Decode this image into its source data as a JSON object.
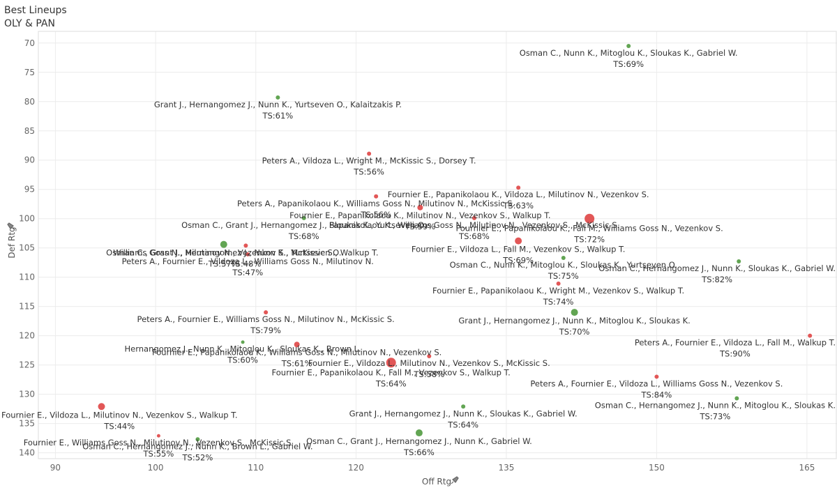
{
  "header": {
    "title": "Best Lineups",
    "subtitle": "OLY & PAN"
  },
  "colors": {
    "green": "#5aa04a",
    "red": "#e04e4e",
    "grid": "#ececec"
  },
  "chart_data": {
    "type": "scatter",
    "title": "Best Lineups",
    "subtitle": "OLY & PAN",
    "xlabel": "Off Rtg",
    "ylabel": "Def Rtg",
    "xlabel_icon": "pin-icon",
    "ylabel_icon": "pin-icon",
    "xlim": [
      88.3,
      168
    ],
    "ylim": [
      141,
      68
    ],
    "y_reversed": true,
    "xticks": [
      90,
      100,
      110,
      120,
      135,
      150,
      165
    ],
    "yticks": [
      70,
      75,
      80,
      85,
      90,
      95,
      100,
      105,
      110,
      115,
      120,
      125,
      130,
      135,
      140
    ],
    "grid": true,
    "points": [
      {
        "lineup": "Osman C., Nunn K., Mitoglou K., Sloukas K., Gabriel W.",
        "ts": "TS:69%",
        "x": 147.2,
        "y": 70.5,
        "color": "green",
        "size": 3
      },
      {
        "lineup": "Grant J., Hernangomez J., Nunn K., Yurtseven O., Kalaitzakis P.",
        "ts": "TS:61%",
        "x": 112.2,
        "y": 79.3,
        "color": "green",
        "size": 3
      },
      {
        "lineup": "Peters A., Vildoza L., Wright M., McKissic S., Dorsey T.",
        "ts": "TS:56%",
        "x": 121.3,
        "y": 88.9,
        "color": "red",
        "size": 3
      },
      {
        "lineup": "Fournier E., Papanikolaou K., Vildoza L., Milutinov N., Vezenkov S.",
        "ts": "TS:63%",
        "x": 136.2,
        "y": 94.7,
        "color": "red",
        "size": 3
      },
      {
        "lineup": "Peters A., Papanikolaou K., Williams Goss N., Milutinov N., McKissic S.",
        "ts": "TS:56%",
        "x": 122,
        "y": 96.2,
        "color": "red",
        "size": 3
      },
      {
        "lineup": "Fournier E., Papanikolaou K., Fall M., Williams Goss N., Vezenkov S.",
        "ts": "TS:72%",
        "x": 143.3,
        "y": 100,
        "color": "red",
        "size": 7
      },
      {
        "lineup": "Fournier E., Papanikolaou K., Milutinov N., Vezenkov S., Walkup T.",
        "ts": "TS:59%",
        "x": 126.4,
        "y": 98.1,
        "color": "red",
        "size": 4
      },
      {
        "lineup": "Osman C., Grant J., Hernangomez J., Sloukas K., Yurtseven O.",
        "ts": "TS:68%",
        "x": 114.8,
        "y": 99.9,
        "color": "green",
        "size": 3
      },
      {
        "lineup": "Papanikolaou K., Williams Goss N., Milutinov N., Vezenkov S., McKissic S.",
        "ts": "TS:68%",
        "x": 131.8,
        "y": 99.9,
        "color": "red",
        "size": 3
      },
      {
        "lineup": "Osman C., Grant J., Hernangomez J., Nunn K., Yurtseven O.",
        "ts": "TS:57%",
        "x": 106.8,
        "y": 104.4,
        "color": "green",
        "size": 5
      },
      {
        "lineup": "Fournier E., Vildoza L., Fall M., Vezenkov S., Walkup T.",
        "ts": "TS:69%",
        "x": 136.2,
        "y": 103.8,
        "color": "red",
        "size": 5
      },
      {
        "lineup": "Peters A., Fournier E., Vildoza L., Williams Goss N., Milutinov N.",
        "ts": "TS:47%",
        "x": 109.2,
        "y": 106.1,
        "color": "red",
        "size": 3
      },
      {
        "lineup": "Osman C., Nunn K., Mitoglou K., Sloukas K., Yurtseven O.",
        "ts": "TS:75%",
        "x": 140.7,
        "y": 106.7,
        "color": "green",
        "size": 3
      },
      {
        "lineup": "Osman C., Hernangomez J., Nunn K., Sloukas K., Gabriel W.",
        "ts": "TS:82%",
        "x": 158.2,
        "y": 107.3,
        "color": "green",
        "size": 3
      },
      {
        "lineup": "Williams Goss N., Milutinov N., Vezenkov S., McKissic S., Walkup T.",
        "ts": "TS:48%",
        "x": 109,
        "y": 104.6,
        "color": "red",
        "size": 3
      },
      {
        "lineup": "Fournier E., Papanikolaou K., Wright M., Vezenkov S., Walkup T.",
        "ts": "TS:74%",
        "x": 140.2,
        "y": 111.1,
        "color": "red",
        "size": 3
      },
      {
        "lineup": "Peters A., Fournier E., Williams Goss N., Milutinov N., McKissic S.",
        "ts": "TS:79%",
        "x": 111,
        "y": 116,
        "color": "red",
        "size": 3
      },
      {
        "lineup": "Grant J., Hernangomez J., Nunn K., Mitoglou K., Sloukas K.",
        "ts": "TS:70%",
        "x": 141.8,
        "y": 116,
        "color": "green",
        "size": 5
      },
      {
        "lineup": "Peters A., Fournier E., Vildoza L., Fall M., Walkup T.",
        "ts": "TS:90%",
        "x": 165.3,
        "y": 120,
        "color": "red",
        "size": 3
      },
      {
        "lineup": "Fournier E., Papanikolaou K., Williams Goss N., Milutinov N., Vezenkov S.",
        "ts": "TS:61%",
        "x": 114.1,
        "y": 121.5,
        "color": "red",
        "size": 4
      },
      {
        "lineup": "Hernangomez J., Nunn K., Mitoglou K., Sloukas K., Brown L.",
        "ts": "TS:60%",
        "x": 108.7,
        "y": 121.1,
        "color": "green",
        "size": 2.5
      },
      {
        "lineup": "Fournier E., Vildoza L., Milutinov N., Vezenkov S., McKissic S.",
        "ts": "TS:58%",
        "x": 127.3,
        "y": 123.5,
        "color": "red",
        "size": 3
      },
      {
        "lineup": "Fournier E., Papanikolaou K., Fall M., Vezenkov S., Walkup T.",
        "ts": "TS:64%",
        "x": 123.5,
        "y": 124.6,
        "color": "red",
        "size": 7
      },
      {
        "lineup": "Peters A., Fournier E., Vildoza L., Williams Goss N., Vezenkov S.",
        "ts": "TS:84%",
        "x": 150,
        "y": 127,
        "color": "red",
        "size": 3
      },
      {
        "lineup": "Osman C., Hernangomez J., Nunn K., Mitoglou K., Sloukas K.",
        "ts": "TS:73%",
        "x": 158,
        "y": 130.7,
        "color": "green",
        "size": 3
      },
      {
        "lineup": "Fournier E., Vildoza L., Milutinov N., Vezenkov S., Walkup T.",
        "ts": "TS:44%",
        "x": 94.6,
        "y": 132.1,
        "color": "red",
        "size": 5
      },
      {
        "lineup": "Grant J., Hernangomez J., Nunn K., Sloukas K., Gabriel W.",
        "ts": "TS:64%",
        "x": 130.7,
        "y": 132.1,
        "color": "green",
        "size": 3
      },
      {
        "lineup": "Fournier E., Williams Goss N., Milutinov N., Vezenkov S., McKissic S.",
        "ts": "TS:55%",
        "x": 100.3,
        "y": 137.1,
        "color": "red",
        "size": 2.5
      },
      {
        "lineup": "Osman C., Hernangomez J., Nunn K., Brown L., Gabriel W.",
        "ts": "TS:52%",
        "x": 104.2,
        "y": 137.7,
        "color": "green",
        "size": 3
      },
      {
        "lineup": "Osman C., Grant J., Hernangomez J., Nunn K., Gabriel W.",
        "ts": "TS:66%",
        "x": 126.3,
        "y": 136.6,
        "color": "green",
        "size": 5
      }
    ]
  }
}
